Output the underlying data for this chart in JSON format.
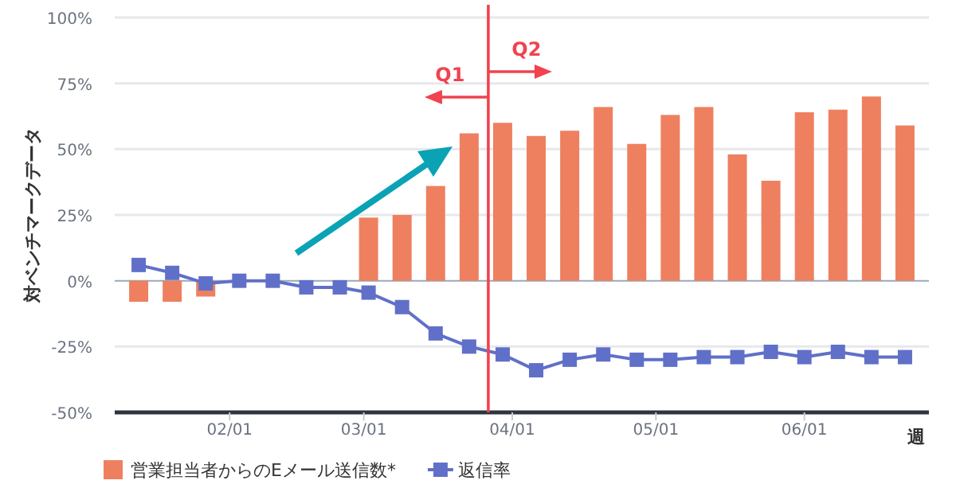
{
  "chart_data": {
    "type": "bar",
    "ylabel": "対ベンチマークデータ",
    "xlabel": "週",
    "x": [
      "--01-13",
      "--01-20",
      "--01-27",
      "--02-03",
      "--02-10",
      "--02-17",
      "--02-24",
      "--03-02",
      "--03-09",
      "--03-16",
      "--03-23",
      "--03-30",
      "--04-06",
      "--04-13",
      "--04-20",
      "--04-27",
      "--05-04",
      "--05-11",
      "--05-18",
      "--05-25",
      "--06-01",
      "--06-08",
      "--06-15",
      "--06-22"
    ],
    "series": [
      {
        "name": "営業担当者からのEメール送信数*",
        "color": "#ee8060",
        "values": [
          -8,
          -8,
          -6,
          null,
          null,
          null,
          0,
          24,
          25,
          36,
          56,
          60,
          55,
          57,
          66,
          52,
          63,
          66,
          48,
          38,
          64,
          65,
          70,
          59
        ]
      },
      {
        "name": "返信率",
        "type": "line",
        "color": "#6070c8",
        "marker": "square",
        "values": [
          6,
          3,
          -1,
          0,
          0,
          -2.5,
          -2.5,
          -4.5,
          -10,
          -20,
          -25,
          -28,
          -34,
          -30,
          -28,
          -30,
          -30,
          -29,
          -29,
          -27,
          -29,
          -27,
          -29,
          -29
        ]
      }
    ],
    "xlim": [
      "--01-08",
      "--06-27"
    ],
    "xticks": [
      {
        "value": "--02-01",
        "label": "02/01"
      },
      {
        "value": "--03-01",
        "label": "03/01"
      },
      {
        "value": "--04-01",
        "label": "04/01"
      },
      {
        "value": "--05-01",
        "label": "05/01"
      },
      {
        "value": "--06-01",
        "label": "06/01"
      }
    ],
    "ylim": [
      -50,
      100
    ],
    "yticks": [
      {
        "value": -50,
        "label": "-50%"
      },
      {
        "value": -25,
        "label": "-25%"
      },
      {
        "value": 0,
        "label": "0%"
      },
      {
        "value": 25,
        "label": "25%"
      },
      {
        "value": 50,
        "label": "50%"
      },
      {
        "value": 75,
        "label": "75%"
      },
      {
        "value": 100,
        "label": "100%"
      }
    ],
    "grid": "y",
    "legend": "bottom left",
    "ref_lines": [
      {
        "axis": "x",
        "value": "--03-27",
        "color": "#f0434f",
        "line_style": "solid"
      }
    ],
    "annotations": [
      "Q1",
      "Q2"
    ]
  }
}
